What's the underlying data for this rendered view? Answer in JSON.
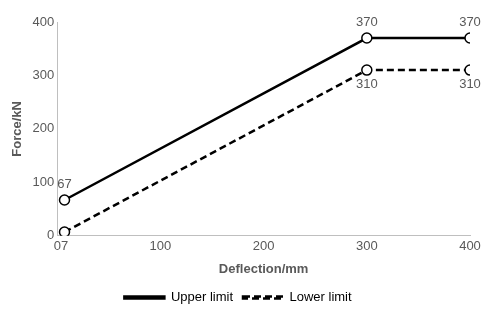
{
  "chart_data": {
    "type": "line",
    "x_label": "Deflection/mm",
    "y_label": "Force/kN",
    "xlim": [
      0,
      400
    ],
    "xticks": [
      0,
      100,
      200,
      300,
      400
    ],
    "ylim": [
      0,
      400
    ],
    "yticks": [
      0,
      100,
      200,
      300,
      400
    ],
    "grid": false,
    "legend": "bottom",
    "data_labels": true,
    "series": [
      {
        "name": "Upper limit",
        "color": "#000000",
        "marker": "circle",
        "line_style": "solid",
        "x": [
          7,
          300,
          400
        ],
        "values": [
          67,
          370,
          370
        ]
      },
      {
        "name": "Lower limit",
        "color": "#000000",
        "marker": "circle",
        "line_style": "dashed",
        "x": [
          7,
          300,
          400
        ],
        "values": [
          7,
          310,
          310
        ]
      }
    ]
  }
}
